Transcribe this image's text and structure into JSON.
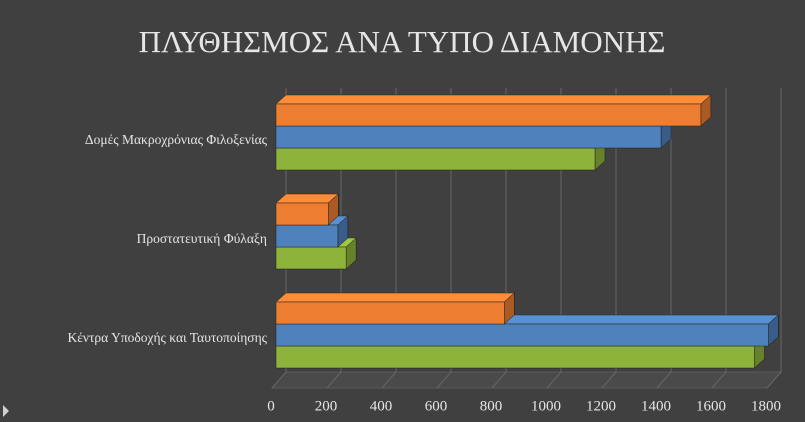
{
  "chart_data": {
    "type": "bar3d",
    "title": "ΠΛΥΘΗΣΜΟΣ ΑΝΑ ΤΥΠΟ ΔΙΑΜΟΝΗΣ",
    "categories": [
      "Κέντρα Υποδοχής και Ταυτοποίησης",
      "Προστατευτική Φύλαξη",
      "Δομές Μακροχρόνιας Φιλοξενίας"
    ],
    "series": [
      {
        "color": "#8db33b",
        "values": [
          1740,
          255,
          1160
        ]
      },
      {
        "color": "#4f81bd",
        "values": [
          1790,
          225,
          1400
        ]
      },
      {
        "color": "#ed7d31",
        "values": [
          830,
          190,
          1545
        ]
      }
    ],
    "xlim": [
      0,
      1800
    ],
    "xticks": [
      0,
      200,
      400,
      600,
      800,
      1000,
      1200,
      1400,
      1600,
      1800
    ],
    "grid": true
  }
}
